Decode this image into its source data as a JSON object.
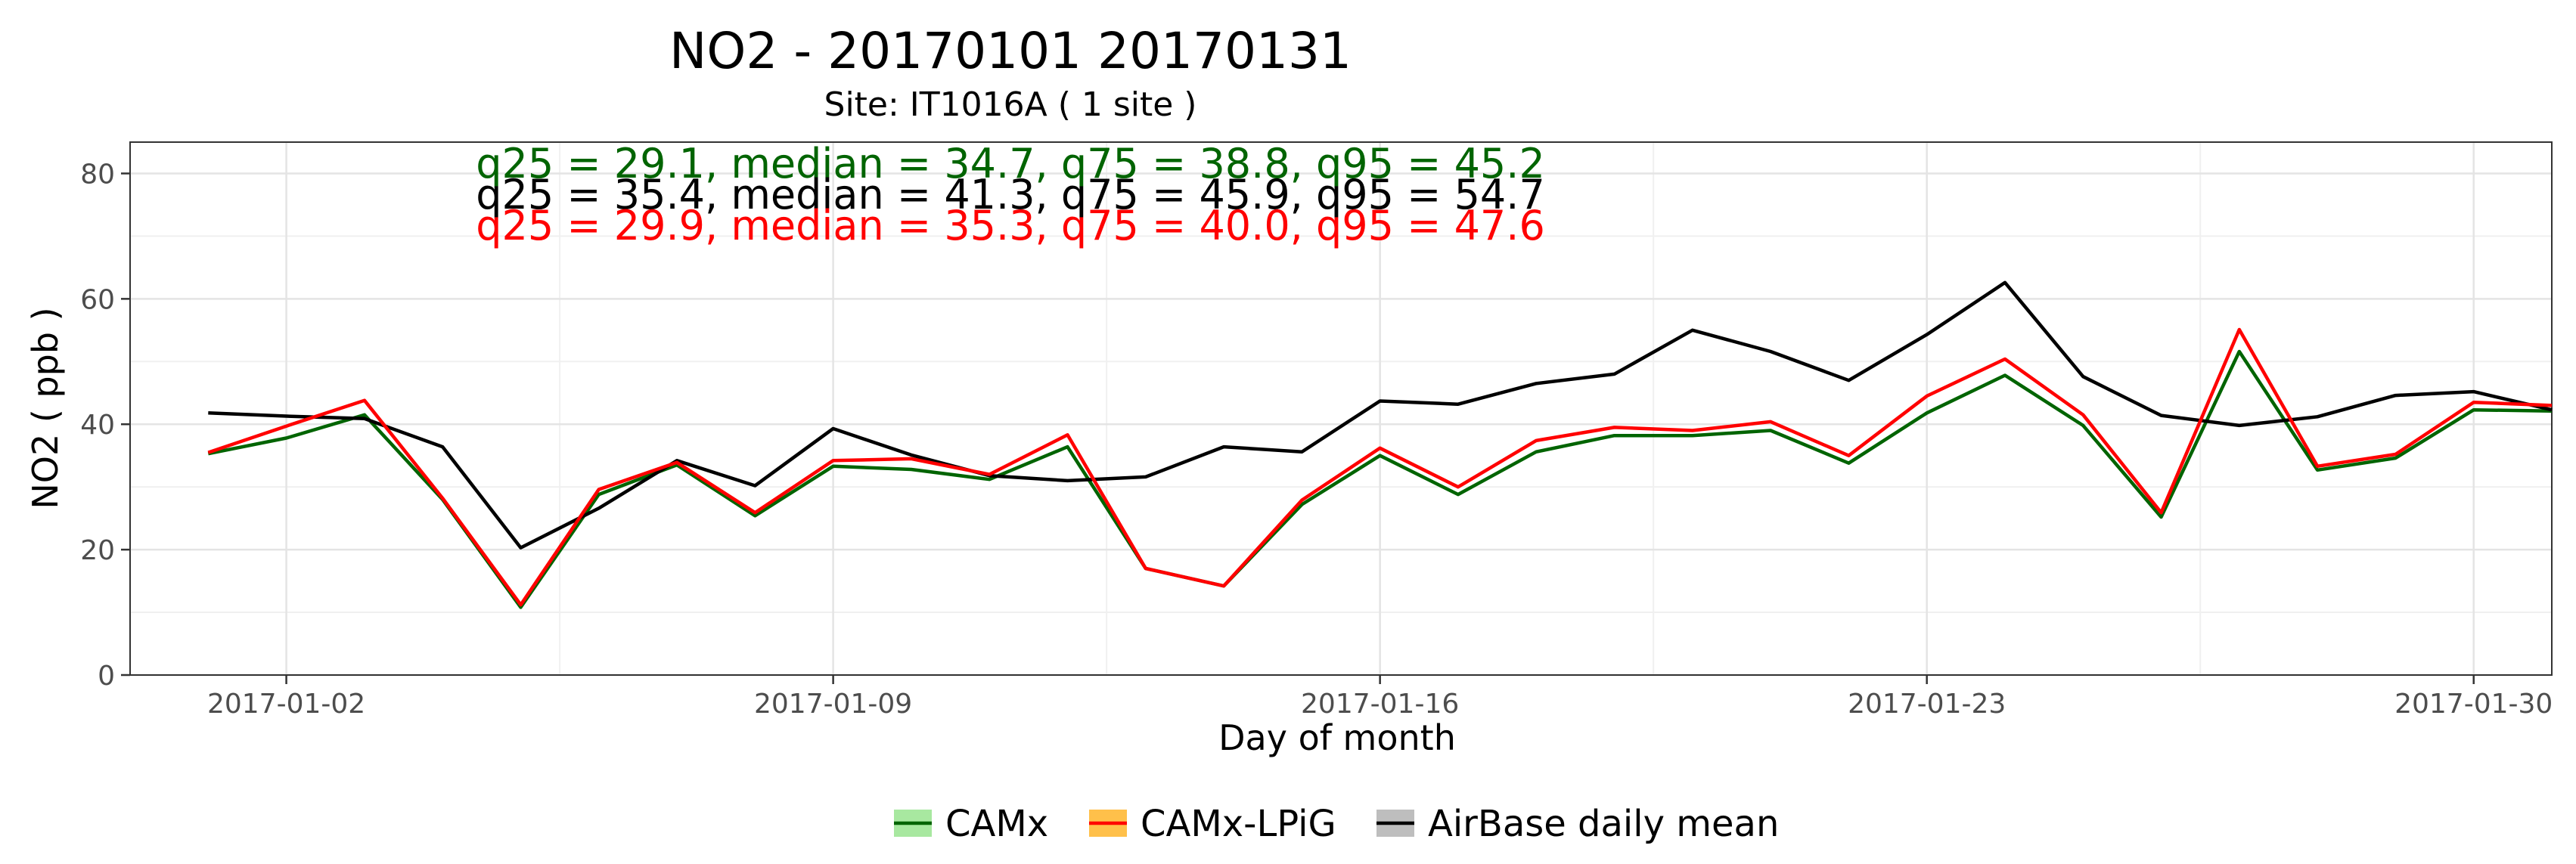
{
  "chart_data": {
    "type": "line",
    "title": "NO2 - 20170101 20170131",
    "subtitle": "Site:  IT1016A ( 1 site )",
    "xlabel": "Day of month",
    "ylabel": "NO2 ( ppb )",
    "ylim": [
      0,
      85
    ],
    "xlim": [
      "2016-12-31",
      "2017-01-31"
    ],
    "y_ticks": [
      0,
      20,
      40,
      60,
      80
    ],
    "x_ticks": [
      "2017-01-02",
      "2017-01-09",
      "2017-01-16",
      "2017-01-23",
      "2017-01-30"
    ],
    "grid": true,
    "legend_position": "bottom",
    "x": [
      "2017-01-01",
      "2017-01-02",
      "2017-01-03",
      "2017-01-04",
      "2017-01-05",
      "2017-01-06",
      "2017-01-07",
      "2017-01-08",
      "2017-01-09",
      "2017-01-10",
      "2017-01-11",
      "2017-01-12",
      "2017-01-13",
      "2017-01-14",
      "2017-01-15",
      "2017-01-16",
      "2017-01-17",
      "2017-01-18",
      "2017-01-19",
      "2017-01-20",
      "2017-01-21",
      "2017-01-22",
      "2017-01-23",
      "2017-01-24",
      "2017-01-25",
      "2017-01-26",
      "2017-01-27",
      "2017-01-28",
      "2017-01-29",
      "2017-01-30",
      "2017-01-31"
    ],
    "series": [
      {
        "name": "CAMx",
        "color": "#006400",
        "values": [
          35.3,
          37.8,
          41.5,
          28.0,
          10.8,
          28.8,
          33.5,
          25.4,
          33.3,
          32.8,
          31.2,
          36.4,
          17.0,
          14.2,
          27.2,
          35.0,
          28.8,
          35.6,
          38.2,
          38.2,
          39.0,
          33.8,
          41.8,
          47.8,
          39.8,
          25.2,
          51.6,
          32.7,
          34.6,
          42.3,
          42.1
        ]
      },
      {
        "name": "CAMx-LPiG",
        "color": "#ff0000",
        "values": [
          35.5,
          39.7,
          43.8,
          28.2,
          11.2,
          29.6,
          33.9,
          25.9,
          34.2,
          34.5,
          32.0,
          38.3,
          17.0,
          14.2,
          27.9,
          36.2,
          30.0,
          37.4,
          39.5,
          39.0,
          40.4,
          35.0,
          44.5,
          50.4,
          41.5,
          25.9,
          55.1,
          33.3,
          35.2,
          43.5,
          43.0
        ]
      },
      {
        "name": "AirBase daily mean",
        "color": "#000000",
        "values": [
          41.8,
          41.3,
          40.9,
          36.4,
          20.3,
          26.6,
          34.2,
          30.2,
          39.3,
          35.1,
          31.8,
          31.0,
          31.6,
          36.4,
          35.6,
          43.7,
          43.2,
          46.5,
          48.0,
          55.0,
          51.6,
          47.0,
          54.3,
          62.6,
          47.6,
          41.4,
          39.8,
          41.2,
          44.6,
          45.2,
          42.3
        ]
      }
    ],
    "annotations": [
      {
        "text": "q25 = 29.1, median = 34.7, q75 = 38.8, q95 = 45.2",
        "color": "#006400"
      },
      {
        "text": "q25 = 35.4, median = 41.3, q75 = 45.9, q95 = 54.7",
        "color": "#000000"
      },
      {
        "text": "q25 = 29.9, median = 35.3, q75 = 40.0, q95 = 47.6",
        "color": "#ff0000"
      }
    ],
    "legend": [
      {
        "label": "CAMx",
        "line_color": "#006400",
        "fill_color": "#a8e8a0"
      },
      {
        "label": "CAMx-LPiG",
        "line_color": "#ff0000",
        "fill_color": "#ffc04a"
      },
      {
        "label": "AirBase daily mean",
        "line_color": "#000000",
        "fill_color": "#bebebe"
      }
    ]
  }
}
